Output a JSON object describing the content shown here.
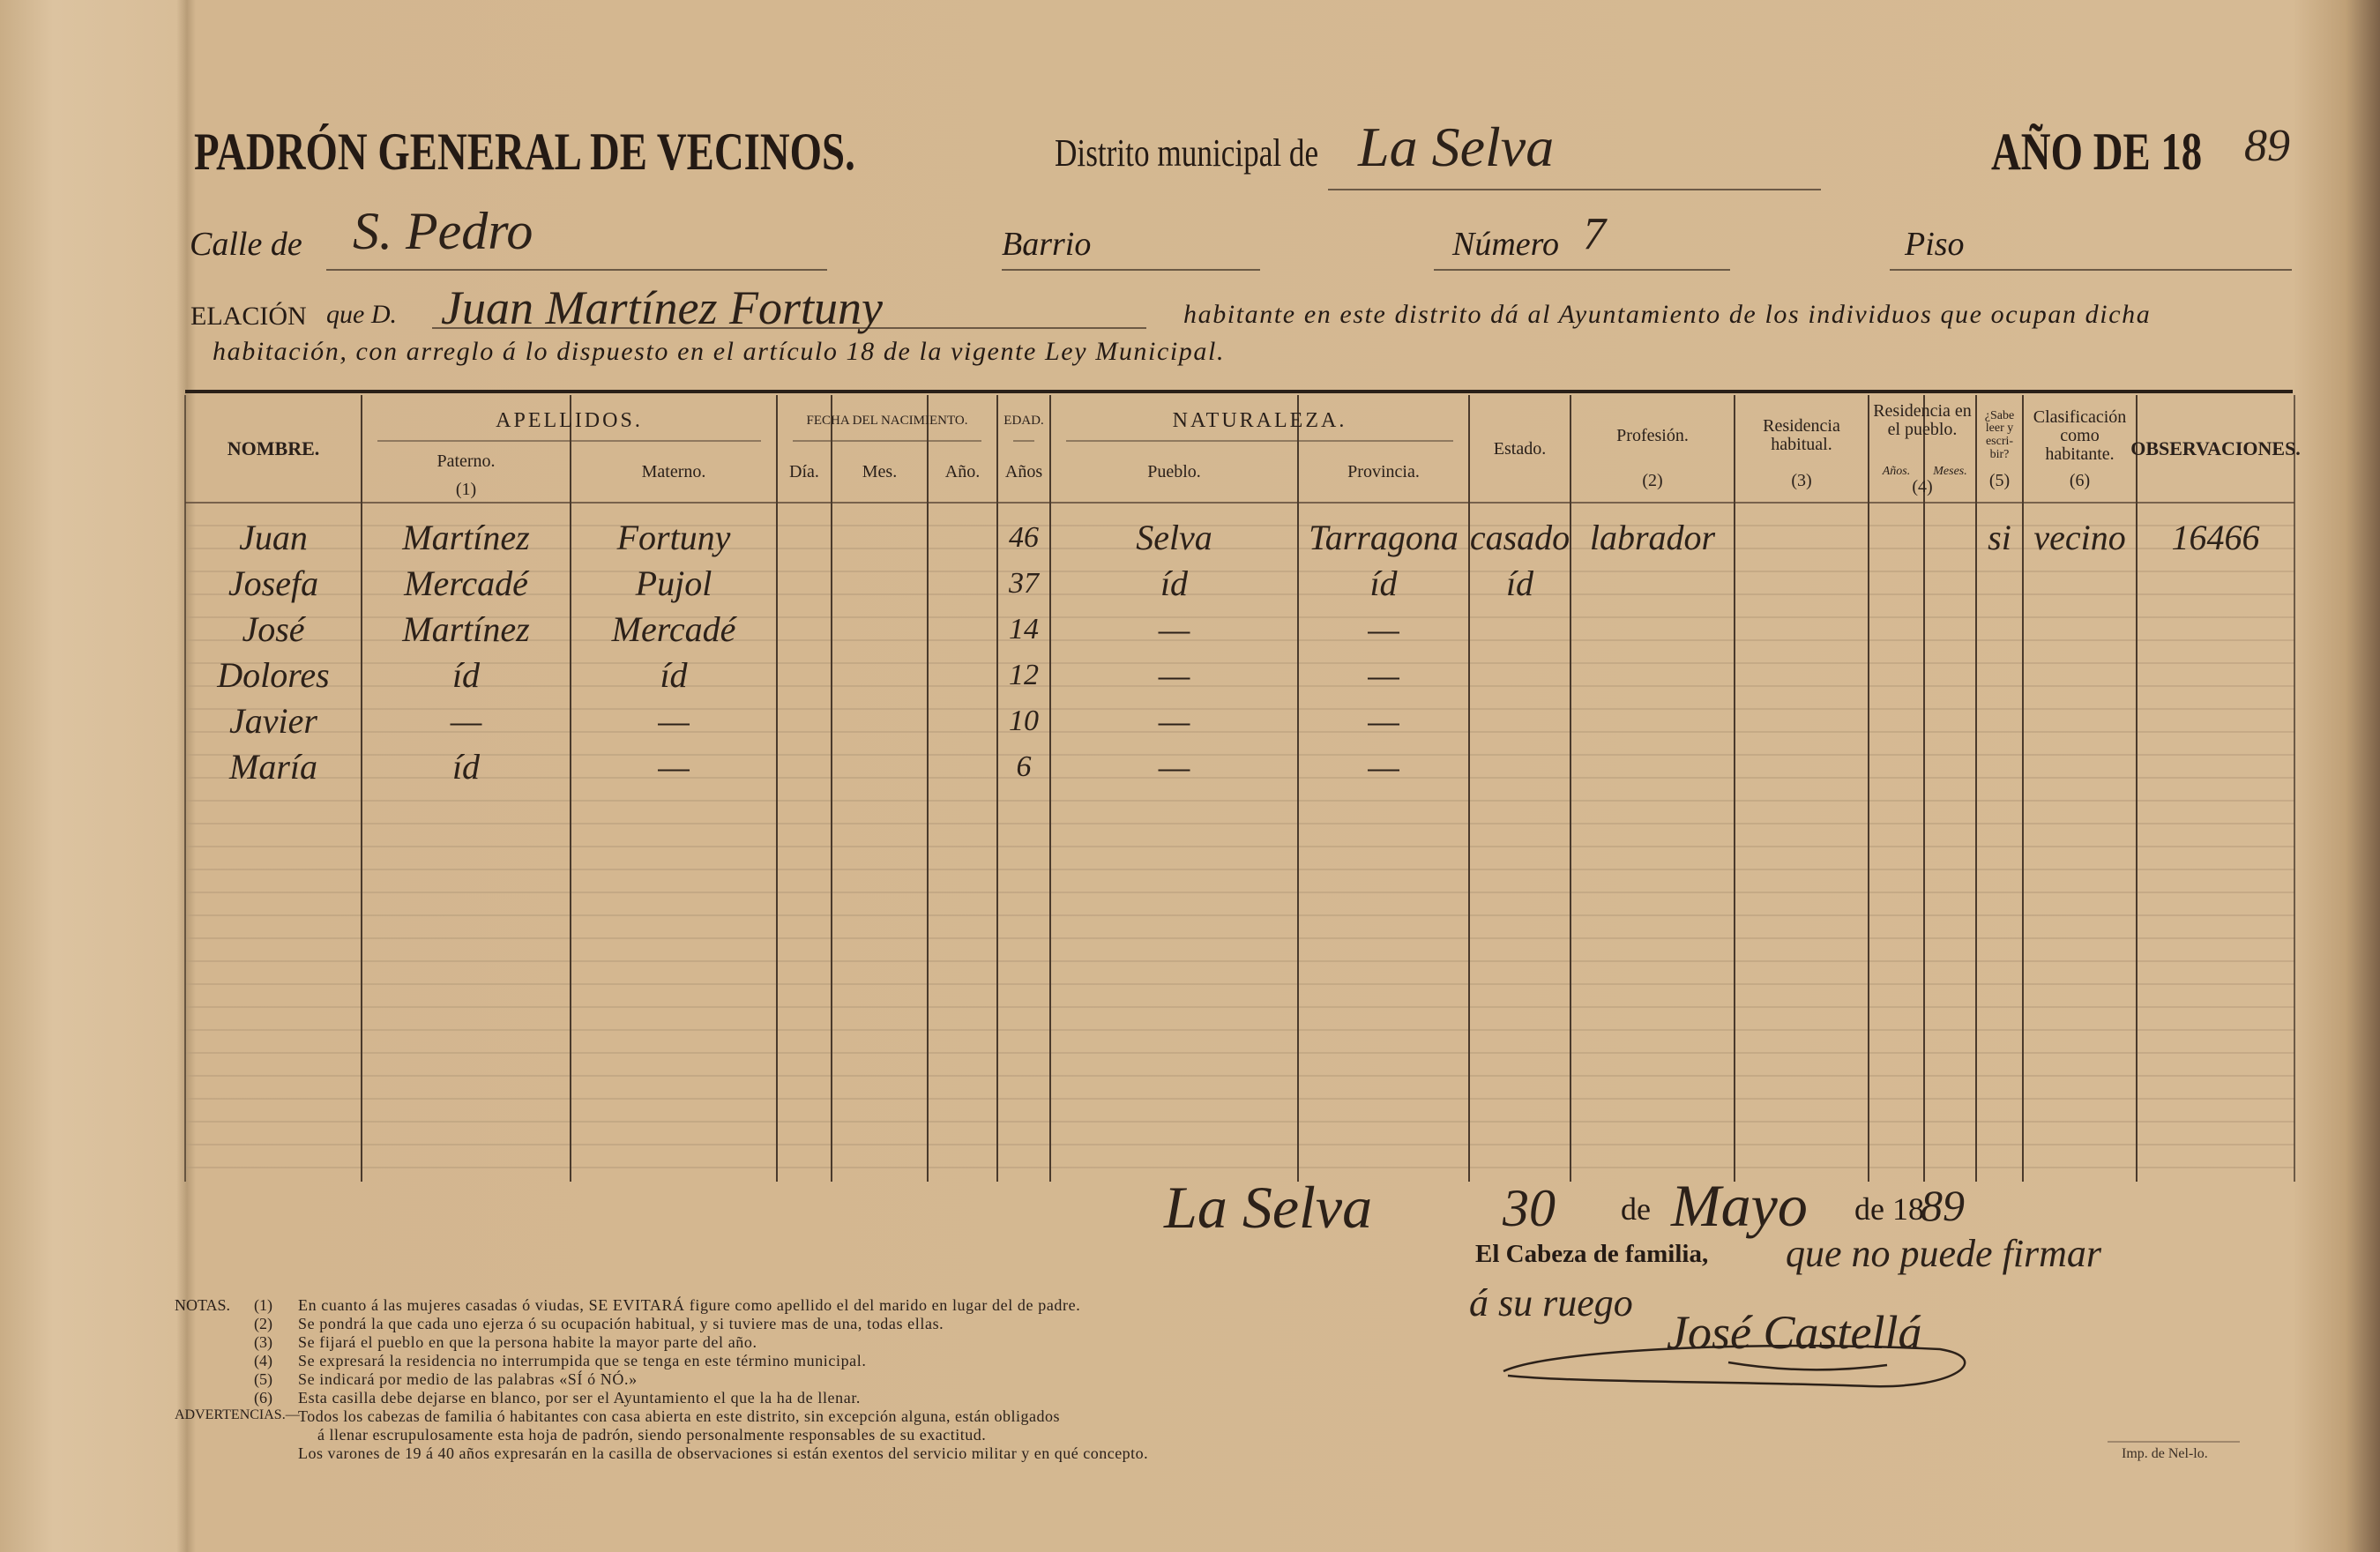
{
  "header": {
    "title": "PADRÓN GENERAL DE VECINOS.",
    "district_label": "Distrito municipal de",
    "district": "La Selva",
    "year_label": "AÑO DE 18",
    "year_suffix": "89"
  },
  "address": {
    "calle_label": "Calle de",
    "calle": "S. Pedro",
    "barrio_label": "Barrio",
    "numero_label": "Número",
    "numero": "7",
    "piso_label": "Piso"
  },
  "relation": {
    "label": "ELACIÓN",
    "que": "que D.",
    "head_name": "Juan Martínez Fortuny",
    "lines": [
      "habitante en este distrito dá al Ayuntamiento de los individuos que ocupan dicha",
      "habitación, con arreglo á lo dispuesto en el artículo 18 de la vigente Ley Municipal."
    ]
  },
  "table": {
    "groups": [
      {
        "label": "APELLIDOS."
      },
      {
        "label": "FECHA DEL NACIMIENTO."
      },
      {
        "label": "EDAD."
      },
      {
        "label": "NATURALEZA."
      },
      {
        "label": "Residencia en el pueblo.",
        "note": "(4)"
      }
    ],
    "columns": [
      {
        "label": "NOMBRE."
      },
      {
        "label": "Paterno.",
        "note": "(1)"
      },
      {
        "label": "Materno."
      },
      {
        "label": "Día."
      },
      {
        "label": "Mes."
      },
      {
        "label": "Año."
      },
      {
        "label": "Años"
      },
      {
        "label": "Pueblo."
      },
      {
        "label": "Provincia."
      },
      {
        "label": "Estado."
      },
      {
        "label": "Profesión.",
        "note": "(2)"
      },
      {
        "label": "Residencia habitual.",
        "note": "(3)"
      },
      {
        "label": "Años."
      },
      {
        "label": "Meses."
      },
      {
        "label": "¿Sabe leer y escri-bir?",
        "note": "(5)"
      },
      {
        "label": "Clasificación como habitante.",
        "note": "(6)"
      },
      {
        "label": "OBSERVACIONES."
      }
    ],
    "rows": [
      [
        "Juan",
        "Martínez",
        "Fortuny",
        null,
        null,
        null,
        "46",
        "Selva",
        "Tarragona",
        "casado",
        "labrador",
        null,
        null,
        null,
        "si",
        "vecino",
        "16466"
      ],
      [
        "Josefa",
        "Mercadé",
        "Pujol",
        null,
        null,
        null,
        "37",
        "íd",
        "íd",
        "íd",
        null,
        null,
        null,
        null,
        null,
        null,
        null
      ],
      [
        "José",
        "Martínez",
        "Mercadé",
        null,
        null,
        null,
        "14",
        "—",
        "—",
        null,
        null,
        null,
        null,
        null,
        null,
        null,
        null
      ],
      [
        "Dolores",
        "íd",
        "íd",
        null,
        null,
        null,
        "12",
        "—",
        "—",
        null,
        null,
        null,
        null,
        null,
        null,
        null,
        null
      ],
      [
        "Javier",
        "—",
        "—",
        null,
        null,
        null,
        "10",
        "—",
        "—",
        null,
        null,
        null,
        null,
        null,
        null,
        null,
        null
      ],
      [
        "María",
        "íd",
        "—",
        null,
        null,
        null,
        "6",
        "—",
        "—",
        null,
        null,
        null,
        null,
        null,
        null,
        null,
        null
      ]
    ]
  },
  "footer": {
    "place": "La Selva",
    "day": "30",
    "de1": "de",
    "month": "Mayo",
    "year_label": "de 18",
    "year_suffix": "89",
    "cabeza_label": "El Cabeza de familia,",
    "cabeza_note1": "que no puede firmar",
    "cabeza_note2": "á su ruego",
    "signature": "José Castellá"
  },
  "notes": {
    "label": "NOTAS.",
    "items": [
      {
        "marker": "(1)",
        "text": "En cuanto á las mujeres casadas ó viudas, SE EVITARÁ figure como apellido el del marido en lugar del de padre."
      },
      {
        "marker": "(2)",
        "text": "Se pondrá la que cada uno ejerza ó su ocupación habitual, y si tuviere mas de una, todas ellas."
      },
      {
        "marker": "(3)",
        "text": "Se fijará el pueblo en que la persona habite la mayor parte del año."
      },
      {
        "marker": "(4)",
        "text": "Se expresará la residencia no interrumpida que se tenga en este término municipal."
      },
      {
        "marker": "(5)",
        "text": "Se indicará por medio de las palabras «SÍ ó NÓ.»"
      },
      {
        "marker": "(6)",
        "text": "Esta casilla debe dejarse en blanco, por ser el Ayuntamiento el que la ha de llenar."
      }
    ],
    "advert_label": "ADVERTENCIAS.—",
    "advert_lines": [
      "Todos los cabezas de familia ó habitantes con casa abierta en este distrito, sin excepción alguna, están obligados",
      "á llenar escrupulosamente esta hoja de padrón, siendo personalmente responsables de su exactitud.",
      "Los varones de 19 á 40 años expresarán en la casilla de observaciones si están exentos del servicio militar y en qué concepto."
    ]
  },
  "imprint": "Imp. de Nel-lo."
}
